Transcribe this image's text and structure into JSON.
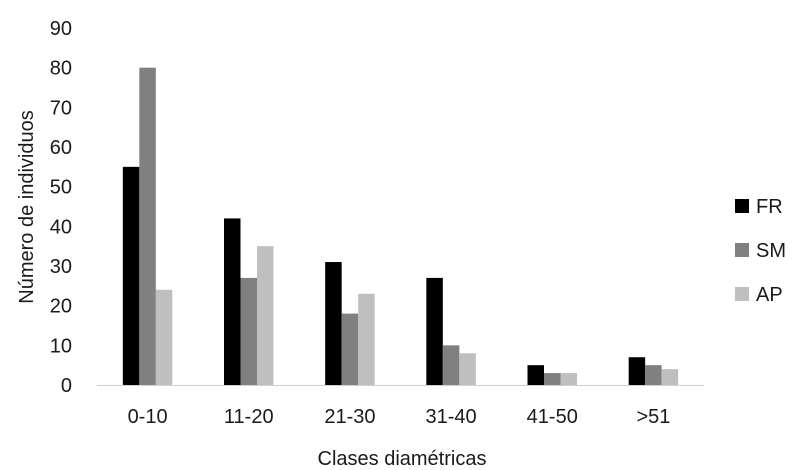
{
  "chart_data": {
    "type": "bar",
    "title": "",
    "xlabel": "Clases diamétricas",
    "ylabel": "Número de individuos",
    "categories": [
      "0-10",
      "11-20",
      "21-30",
      "31-40",
      "41-50",
      ">51"
    ],
    "series": [
      {
        "name": "FR",
        "color": "#000000",
        "values": [
          55,
          42,
          31,
          27,
          5,
          7
        ]
      },
      {
        "name": "SM",
        "color": "#808080",
        "values": [
          80,
          27,
          18,
          10,
          3,
          5
        ]
      },
      {
        "name": "AP",
        "color": "#bfbfbf",
        "values": [
          24,
          35,
          23,
          8,
          3,
          4
        ]
      }
    ],
    "ylim": [
      0,
      90
    ],
    "yticks": [
      0,
      10,
      20,
      30,
      40,
      50,
      60,
      70,
      80,
      90
    ],
    "grid": false,
    "legend_position": "right"
  }
}
